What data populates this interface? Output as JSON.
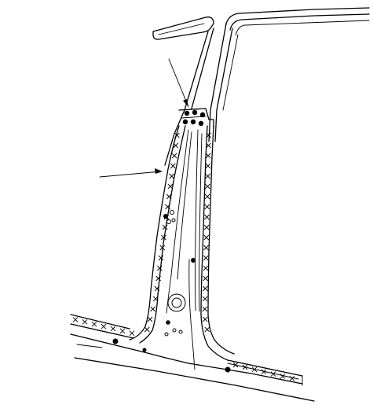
{
  "figure": {
    "kind": "technical-line-drawing",
    "subject": "vehicle-body-pillar-weld-and-sealer-locations",
    "callouts": [
      {
        "id": "upper",
        "target": "spot-weld-cluster"
      },
      {
        "id": "left",
        "target": "sealer-bead-x-line"
      }
    ],
    "marks": {
      "weld_dot_color": "#000000",
      "line_color": "#000000",
      "background": "#ffffff"
    }
  }
}
